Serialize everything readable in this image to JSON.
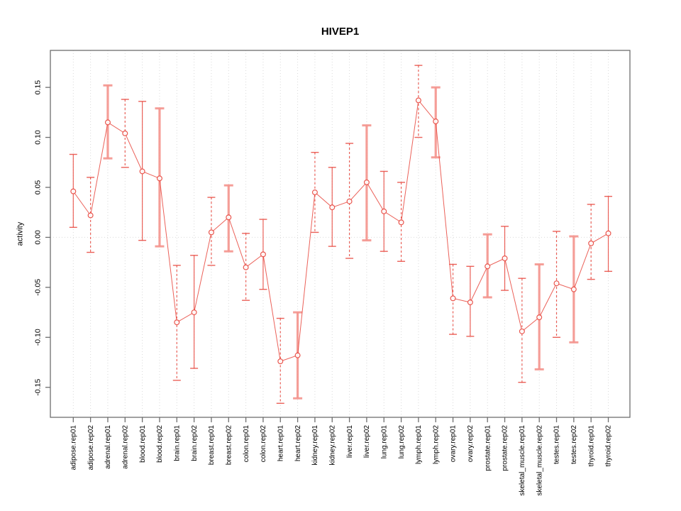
{
  "chart_data": {
    "type": "line",
    "title": "HIVEP1",
    "xlabel": "",
    "ylabel": "activity",
    "ylim": [
      -0.18,
      0.187
    ],
    "yticks": [
      -0.15,
      -0.1,
      -0.05,
      0,
      0.05,
      0.1,
      0.15
    ],
    "ytick_labels": [
      "-0.15",
      "-0.10",
      "-0.05",
      "0.00",
      "0.05",
      "0.10",
      "0.15"
    ],
    "grid": {
      "vertical_dotted_per_category": true,
      "horizontal_dotted_at_zero": true
    },
    "legend_position": "none",
    "marker": "open-circle",
    "categories": [
      "adipose.rep01",
      "adipose.rep02",
      "adrenal.rep01",
      "adrenal.rep02",
      "blood.rep01",
      "blood.rep02",
      "brain.rep01",
      "brain.rep02",
      "breast.rep01",
      "breast.rep02",
      "colon.rep01",
      "colon.rep02",
      "heart.rep01",
      "heart.rep02",
      "kidney.rep01",
      "kidney.rep02",
      "liver.rep01",
      "liver.rep02",
      "lung.rep01",
      "lung.rep02",
      "lymph.rep01",
      "lymph.rep02",
      "ovary.rep01",
      "ovary.rep02",
      "prostate.rep01",
      "prostate.rep02",
      "skeletal_muscle.rep01",
      "skeletal_muscle.rep02",
      "testes.rep01",
      "testes.rep02",
      "thyroid.rep01",
      "thyroid.rep02"
    ],
    "series": [
      {
        "name": "activity",
        "values": [
          0.046,
          0.022,
          0.115,
          0.104,
          0.066,
          0.059,
          -0.085,
          -0.075,
          0.005,
          0.02,
          -0.03,
          -0.017,
          -0.124,
          -0.118,
          0.045,
          0.03,
          0.036,
          0.055,
          0.026,
          0.015,
          0.137,
          0.116,
          -0.061,
          -0.065,
          -0.029,
          -0.021,
          -0.094,
          -0.08,
          -0.046,
          -0.052,
          -0.006,
          0.004
        ],
        "error_low": [
          0.01,
          -0.015,
          0.079,
          0.07,
          -0.003,
          -0.009,
          -0.143,
          -0.131,
          -0.028,
          -0.014,
          -0.063,
          -0.052,
          -0.166,
          -0.161,
          0.005,
          -0.009,
          -0.021,
          -0.003,
          -0.014,
          -0.024,
          0.1,
          0.08,
          -0.097,
          -0.099,
          -0.06,
          -0.053,
          -0.145,
          -0.132,
          -0.1,
          -0.105,
          -0.042,
          -0.034
        ],
        "error_high": [
          0.083,
          0.06,
          0.152,
          0.138,
          0.136,
          0.129,
          -0.028,
          -0.018,
          0.04,
          0.052,
          0.004,
          0.018,
          -0.081,
          -0.075,
          0.085,
          0.07,
          0.094,
          0.112,
          0.066,
          0.055,
          0.172,
          0.15,
          -0.027,
          -0.029,
          0.003,
          0.011,
          -0.041,
          -0.027,
          0.006,
          0.001,
          0.033,
          0.041
        ],
        "error_bar_styles": [
          "solid",
          "dashed",
          "thick",
          "dashed",
          "solid",
          "thick",
          "dashed",
          "solid",
          "dashed",
          "thick",
          "dashed",
          "solid",
          "dashed",
          "thick",
          "dashed",
          "solid",
          "dashed",
          "thick",
          "solid",
          "dashed",
          "dashed",
          "thick",
          "dashed",
          "solid",
          "thick",
          "solid",
          "dashed",
          "thick",
          "dashed",
          "thick",
          "dashed",
          "solid"
        ]
      }
    ],
    "colors": {
      "line": "#e8453c",
      "error_thick": "#f4938d",
      "grid": "#d9d9d9",
      "axis": "#6e6e6e",
      "text": "#000000",
      "background": "#ffffff"
    }
  }
}
